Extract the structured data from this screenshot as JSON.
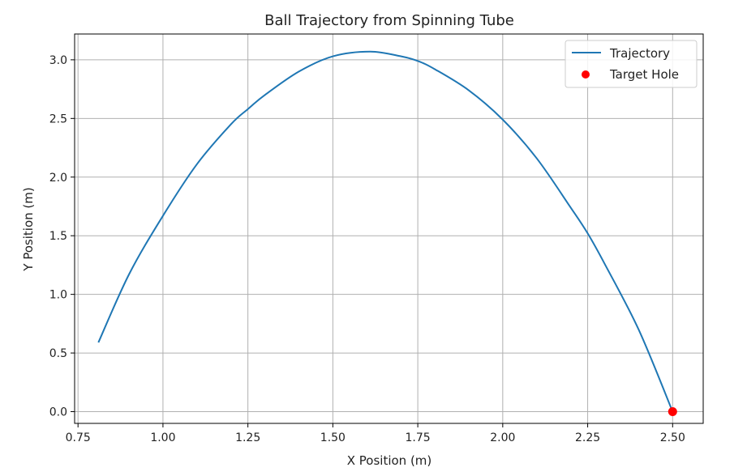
{
  "chart_data": {
    "type": "line",
    "title": "Ball Trajectory from Spinning Tube",
    "xlabel": "X Position (m)",
    "ylabel": "Y Position (m)",
    "xlim": [
      0.74,
      2.59
    ],
    "ylim": [
      -0.1,
      3.22
    ],
    "xticks": [
      0.75,
      1.0,
      1.25,
      1.5,
      1.75,
      2.0,
      2.25,
      2.5
    ],
    "xtick_labels": [
      "0.75",
      "1.00",
      "1.25",
      "1.50",
      "1.75",
      "2.00",
      "2.25",
      "2.50"
    ],
    "yticks": [
      0.0,
      0.5,
      1.0,
      1.5,
      2.0,
      2.5,
      3.0
    ],
    "ytick_labels": [
      "0.0",
      "0.5",
      "1.0",
      "1.5",
      "2.0",
      "2.5",
      "3.0"
    ],
    "grid": true,
    "legend_position": "top-right",
    "series": [
      {
        "name": "Trajectory",
        "kind": "line",
        "color": "#1f77b4",
        "x": [
          0.81,
          0.9,
          1.0,
          1.1,
          1.2,
          1.25,
          1.3,
          1.4,
          1.5,
          1.61,
          1.7,
          1.75,
          1.8,
          1.9,
          2.0,
          2.1,
          2.2,
          2.25,
          2.3,
          2.4,
          2.5
        ],
        "y": [
          0.59,
          1.17,
          1.67,
          2.11,
          2.45,
          2.58,
          2.7,
          2.9,
          3.03,
          3.07,
          3.03,
          2.99,
          2.92,
          2.74,
          2.49,
          2.16,
          1.74,
          1.52,
          1.26,
          0.7,
          0.0
        ]
      },
      {
        "name": "Target Hole",
        "kind": "scatter",
        "color": "#ff0000",
        "x": [
          2.5
        ],
        "y": [
          0.0
        ]
      }
    ]
  }
}
